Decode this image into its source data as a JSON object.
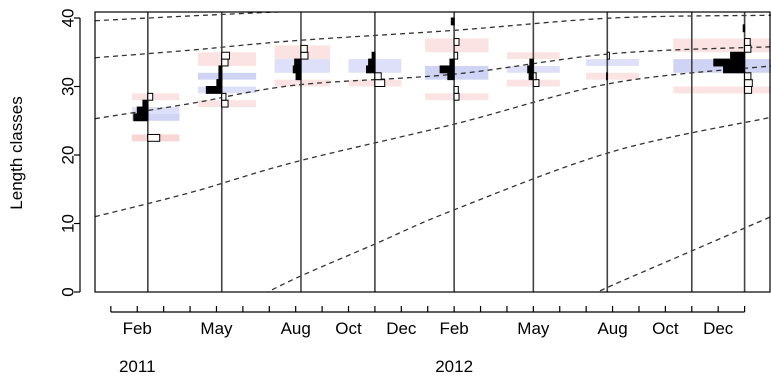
{
  "chart_data": {
    "type": "histogram-timeseries",
    "ylabel": "Length classes",
    "ylim": [
      0,
      40
    ],
    "yticks": [
      0,
      10,
      20,
      30,
      40
    ],
    "month_ticks": [
      {
        "label": "Feb",
        "x": 0
      },
      {
        "label": "May",
        "x": 3
      },
      {
        "label": "Aug",
        "x": 6
      },
      {
        "label": "Oct",
        "x": 8
      },
      {
        "label": "Dec",
        "x": 10
      },
      {
        "label": "Feb",
        "x": 12
      },
      {
        "label": "May",
        "x": 15
      },
      {
        "label": "Aug",
        "x": 18
      },
      {
        "label": "Oct",
        "x": 20
      },
      {
        "label": "Dec",
        "x": 22
      }
    ],
    "years": [
      {
        "label": "2011",
        "x": 0
      },
      {
        "label": "2012",
        "x": 12
      }
    ],
    "xlim": [
      -1.6,
      24
    ],
    "sample_lines": [
      0.4,
      3.2,
      6.2,
      9.0,
      12.0,
      15.0,
      17.8,
      21.0,
      23.0
    ],
    "growth_curves": [
      {
        "points": [
          [
            -1.6,
            39.6
          ],
          [
            2,
            40.3
          ],
          [
            6,
            41
          ],
          [
            12,
            42
          ],
          [
            24,
            42.5
          ]
        ]
      },
      {
        "points": [
          [
            -1.6,
            34.2
          ],
          [
            2,
            35.3
          ],
          [
            6,
            36.7
          ],
          [
            12,
            38.2
          ],
          [
            18,
            40.0
          ],
          [
            24,
            40.4
          ]
        ]
      },
      {
        "points": [
          [
            -1.6,
            25.3
          ],
          [
            2,
            27.5
          ],
          [
            6,
            30.2
          ],
          [
            12,
            31.8
          ],
          [
            18,
            34.8
          ],
          [
            24,
            35.8
          ]
        ]
      },
      {
        "points": [
          [
            -1.6,
            11.0
          ],
          [
            2,
            14.5
          ],
          [
            6,
            19.0
          ],
          [
            12,
            24.5
          ],
          [
            18,
            30.5
          ],
          [
            24,
            33.0
          ]
        ]
      },
      {
        "points": [
          [
            4.2,
            -1.5
          ],
          [
            6,
            2.0
          ],
          [
            9,
            7.0
          ],
          [
            12,
            12.0
          ],
          [
            18,
            20.5
          ],
          [
            24,
            25.5
          ]
        ]
      },
      {
        "points": [
          [
            16.6,
            -1.5
          ],
          [
            18,
            1.0
          ],
          [
            21,
            6.0
          ],
          [
            24,
            11.0
          ]
        ]
      }
    ],
    "background_bands": [
      {
        "x0": -0.2,
        "x1": 1.6,
        "y0": 22,
        "y1": 23,
        "color": "#f9d6d6"
      },
      {
        "x0": -0.2,
        "x1": 1.6,
        "y0": 25,
        "y1": 26,
        "color": "#cfd4f5"
      },
      {
        "x0": -0.2,
        "x1": 1.6,
        "y0": 26,
        "y1": 27,
        "color": "#dde0f8"
      },
      {
        "x0": -0.2,
        "x1": 1.6,
        "y0": 28,
        "y1": 29,
        "color": "#fbe3e3"
      },
      {
        "x0": 2.3,
        "x1": 4.5,
        "y0": 27,
        "y1": 28,
        "color": "#fbe3e3"
      },
      {
        "x0": 2.3,
        "x1": 4.5,
        "y0": 29,
        "y1": 30,
        "color": "#dde0f8"
      },
      {
        "x0": 2.3,
        "x1": 4.5,
        "y0": 31,
        "y1": 32,
        "color": "#cfd4f5"
      },
      {
        "x0": 2.3,
        "x1": 4.5,
        "y0": 33,
        "y1": 35,
        "color": "#fbe3e3"
      },
      {
        "x0": 5.2,
        "x1": 7.3,
        "y0": 30,
        "y1": 31,
        "color": "#fbe3e3"
      },
      {
        "x0": 5.2,
        "x1": 7.3,
        "y0": 32,
        "y1": 34,
        "color": "#dde0f8"
      },
      {
        "x0": 5.2,
        "x1": 7.3,
        "y0": 34,
        "y1": 36,
        "color": "#fbe3e3"
      },
      {
        "x0": 8.0,
        "x1": 10.0,
        "y0": 30,
        "y1": 31,
        "color": "#fbe3e3"
      },
      {
        "x0": 8.0,
        "x1": 10.0,
        "y0": 32,
        "y1": 34,
        "color": "#dde0f8"
      },
      {
        "x0": 10.9,
        "x1": 13.3,
        "y0": 28,
        "y1": 29,
        "color": "#fbe3e3"
      },
      {
        "x0": 10.9,
        "x1": 13.3,
        "y0": 31,
        "y1": 33,
        "color": "#cfd4f5"
      },
      {
        "x0": 10.9,
        "x1": 13.3,
        "y0": 35,
        "y1": 37,
        "color": "#fbe3e3"
      },
      {
        "x0": 14.0,
        "x1": 16.0,
        "y0": 30,
        "y1": 31,
        "color": "#fbe3e3"
      },
      {
        "x0": 14.0,
        "x1": 16.0,
        "y0": 32,
        "y1": 33,
        "color": "#dde0f8"
      },
      {
        "x0": 14.0,
        "x1": 16.0,
        "y0": 34,
        "y1": 35,
        "color": "#fbe3e3"
      },
      {
        "x0": 17.0,
        "x1": 19.0,
        "y0": 31,
        "y1": 32,
        "color": "#fbe3e3"
      },
      {
        "x0": 17.0,
        "x1": 19.0,
        "y0": 33,
        "y1": 34,
        "color": "#dde0f8"
      },
      {
        "x0": 20.3,
        "x1": 24.0,
        "y0": 29,
        "y1": 30,
        "color": "#fbe3e3"
      },
      {
        "x0": 20.3,
        "x1": 24.0,
        "y0": 32,
        "y1": 34,
        "color": "#cfd4f5"
      },
      {
        "x0": 20.3,
        "x1": 24.0,
        "y0": 35,
        "y1": 37,
        "color": "#fbe3e3"
      }
    ],
    "bars": [
      {
        "x": 0.4,
        "y": 25,
        "len": -1.0,
        "fill": "black"
      },
      {
        "x": 0.4,
        "y": 26,
        "len": -0.75,
        "fill": "black"
      },
      {
        "x": 0.4,
        "y": 27,
        "len": -0.35,
        "fill": "black"
      },
      {
        "x": 0.4,
        "y": 28,
        "len": 0.35,
        "fill": "white"
      },
      {
        "x": 0.4,
        "y": 22,
        "len": 0.85,
        "fill": "white"
      },
      {
        "x": 3.2,
        "y": 29,
        "len": -1.1,
        "fill": "black"
      },
      {
        "x": 3.2,
        "y": 30,
        "len": -0.35,
        "fill": "black"
      },
      {
        "x": 3.2,
        "y": 31,
        "len": -0.2,
        "fill": "black"
      },
      {
        "x": 3.2,
        "y": 32,
        "len": -0.2,
        "fill": "black"
      },
      {
        "x": 3.2,
        "y": 27,
        "len": 0.45,
        "fill": "white"
      },
      {
        "x": 3.2,
        "y": 28,
        "len": 0.3,
        "fill": "white"
      },
      {
        "x": 3.2,
        "y": 33,
        "len": 0.45,
        "fill": "white"
      },
      {
        "x": 3.2,
        "y": 34,
        "len": 0.55,
        "fill": "white"
      },
      {
        "x": 6.2,
        "y": 31,
        "len": -0.35,
        "fill": "black"
      },
      {
        "x": 6.2,
        "y": 32,
        "len": -0.55,
        "fill": "black"
      },
      {
        "x": 6.2,
        "y": 33,
        "len": -0.45,
        "fill": "black"
      },
      {
        "x": 6.2,
        "y": 34,
        "len": 0.5,
        "fill": "white"
      },
      {
        "x": 6.2,
        "y": 35,
        "len": 0.45,
        "fill": "white"
      },
      {
        "x": 9.0,
        "y": 32,
        "len": -0.6,
        "fill": "black"
      },
      {
        "x": 9.0,
        "y": 33,
        "len": -0.45,
        "fill": "black"
      },
      {
        "x": 9.0,
        "y": 34,
        "len": -0.2,
        "fill": "black"
      },
      {
        "x": 9.0,
        "y": 30,
        "len": 0.7,
        "fill": "white"
      },
      {
        "x": 9.0,
        "y": 31,
        "len": 0.45,
        "fill": "white"
      },
      {
        "x": 12.0,
        "y": 31,
        "len": -0.45,
        "fill": "black"
      },
      {
        "x": 12.0,
        "y": 32,
        "len": -1.0,
        "fill": "black"
      },
      {
        "x": 12.0,
        "y": 33,
        "len": -0.3,
        "fill": "black"
      },
      {
        "x": 12.0,
        "y": 39,
        "len": -0.2,
        "fill": "black"
      },
      {
        "x": 12.0,
        "y": 28,
        "len": 0.35,
        "fill": "white"
      },
      {
        "x": 12.0,
        "y": 29,
        "len": 0.3,
        "fill": "white"
      },
      {
        "x": 12.0,
        "y": 34,
        "len": 0.25,
        "fill": "white"
      },
      {
        "x": 12.0,
        "y": 36,
        "len": 0.35,
        "fill": "white"
      },
      {
        "x": 15.0,
        "y": 31,
        "len": -0.3,
        "fill": "black"
      },
      {
        "x": 15.0,
        "y": 32,
        "len": -0.4,
        "fill": "black"
      },
      {
        "x": 15.0,
        "y": 33,
        "len": -0.25,
        "fill": "black"
      },
      {
        "x": 15.0,
        "y": 30,
        "len": 0.4,
        "fill": "white"
      },
      {
        "x": 15.0,
        "y": 31,
        "len": 0.2,
        "fill": "white"
      },
      {
        "x": 17.8,
        "y": 31,
        "len": -0.05,
        "fill": "black"
      },
      {
        "x": 17.8,
        "y": 34,
        "len": 0.15,
        "fill": "white"
      },
      {
        "x": 23.0,
        "y": 32,
        "len": -1.5,
        "fill": "black"
      },
      {
        "x": 23.0,
        "y": 33,
        "len": -2.2,
        "fill": "black"
      },
      {
        "x": 23.0,
        "y": 34,
        "len": -1.0,
        "fill": "black"
      },
      {
        "x": 23.0,
        "y": 38,
        "len": -0.1,
        "fill": "black"
      },
      {
        "x": 23.0,
        "y": 29,
        "len": 0.5,
        "fill": "white"
      },
      {
        "x": 23.0,
        "y": 30,
        "len": 0.55,
        "fill": "white"
      },
      {
        "x": 23.0,
        "y": 31,
        "len": 0.45,
        "fill": "white"
      },
      {
        "x": 23.0,
        "y": 35,
        "len": 0.45,
        "fill": "white"
      },
      {
        "x": 23.0,
        "y": 36,
        "len": 0.4,
        "fill": "white"
      }
    ]
  }
}
